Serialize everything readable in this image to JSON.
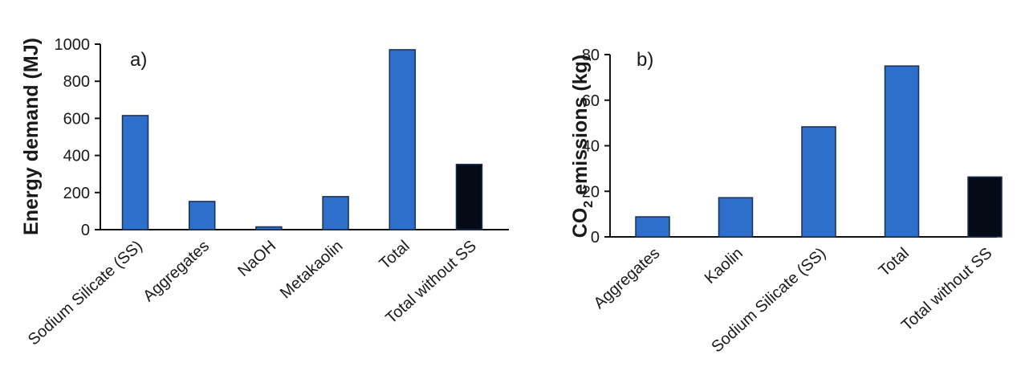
{
  "chart_data": [
    {
      "type": "bar",
      "panel_label": "a)",
      "ylabel": "Energy demand (MJ)",
      "xlabel": "",
      "categories": [
        "Sodium Silicate (SS)",
        "Aggregates",
        "NaOH",
        "Metakaolin",
        "Total",
        "Total without SS"
      ],
      "values": [
        615,
        152,
        15,
        178,
        970,
        352
      ],
      "bar_colors": [
        "#2e6fcb",
        "#2e6fcb",
        "#2e6fcb",
        "#2e6fcb",
        "#2e6fcb",
        "#050a17"
      ],
      "ylim": [
        0,
        1000
      ],
      "yticks": [
        0,
        200,
        400,
        600,
        800,
        1000
      ],
      "grid": false,
      "legend": "none"
    },
    {
      "type": "bar",
      "panel_label": "b)",
      "ylabel_main": "CO",
      "ylabel_sub": "2",
      "ylabel_rest": " emissions (kg)",
      "xlabel": "",
      "categories": [
        "Aggregates",
        "Kaolin",
        "Sodium Silicate (SS)",
        "Total",
        "Total without SS"
      ],
      "values": [
        8.8,
        17.2,
        48.3,
        75,
        26.3
      ],
      "bar_colors": [
        "#2e6fcb",
        "#2e6fcb",
        "#2e6fcb",
        "#2e6fcb",
        "#050a17"
      ],
      "ylim": [
        0,
        80
      ],
      "yticks": [
        0,
        20,
        40,
        60,
        80
      ],
      "grid": false,
      "legend": "none"
    }
  ]
}
